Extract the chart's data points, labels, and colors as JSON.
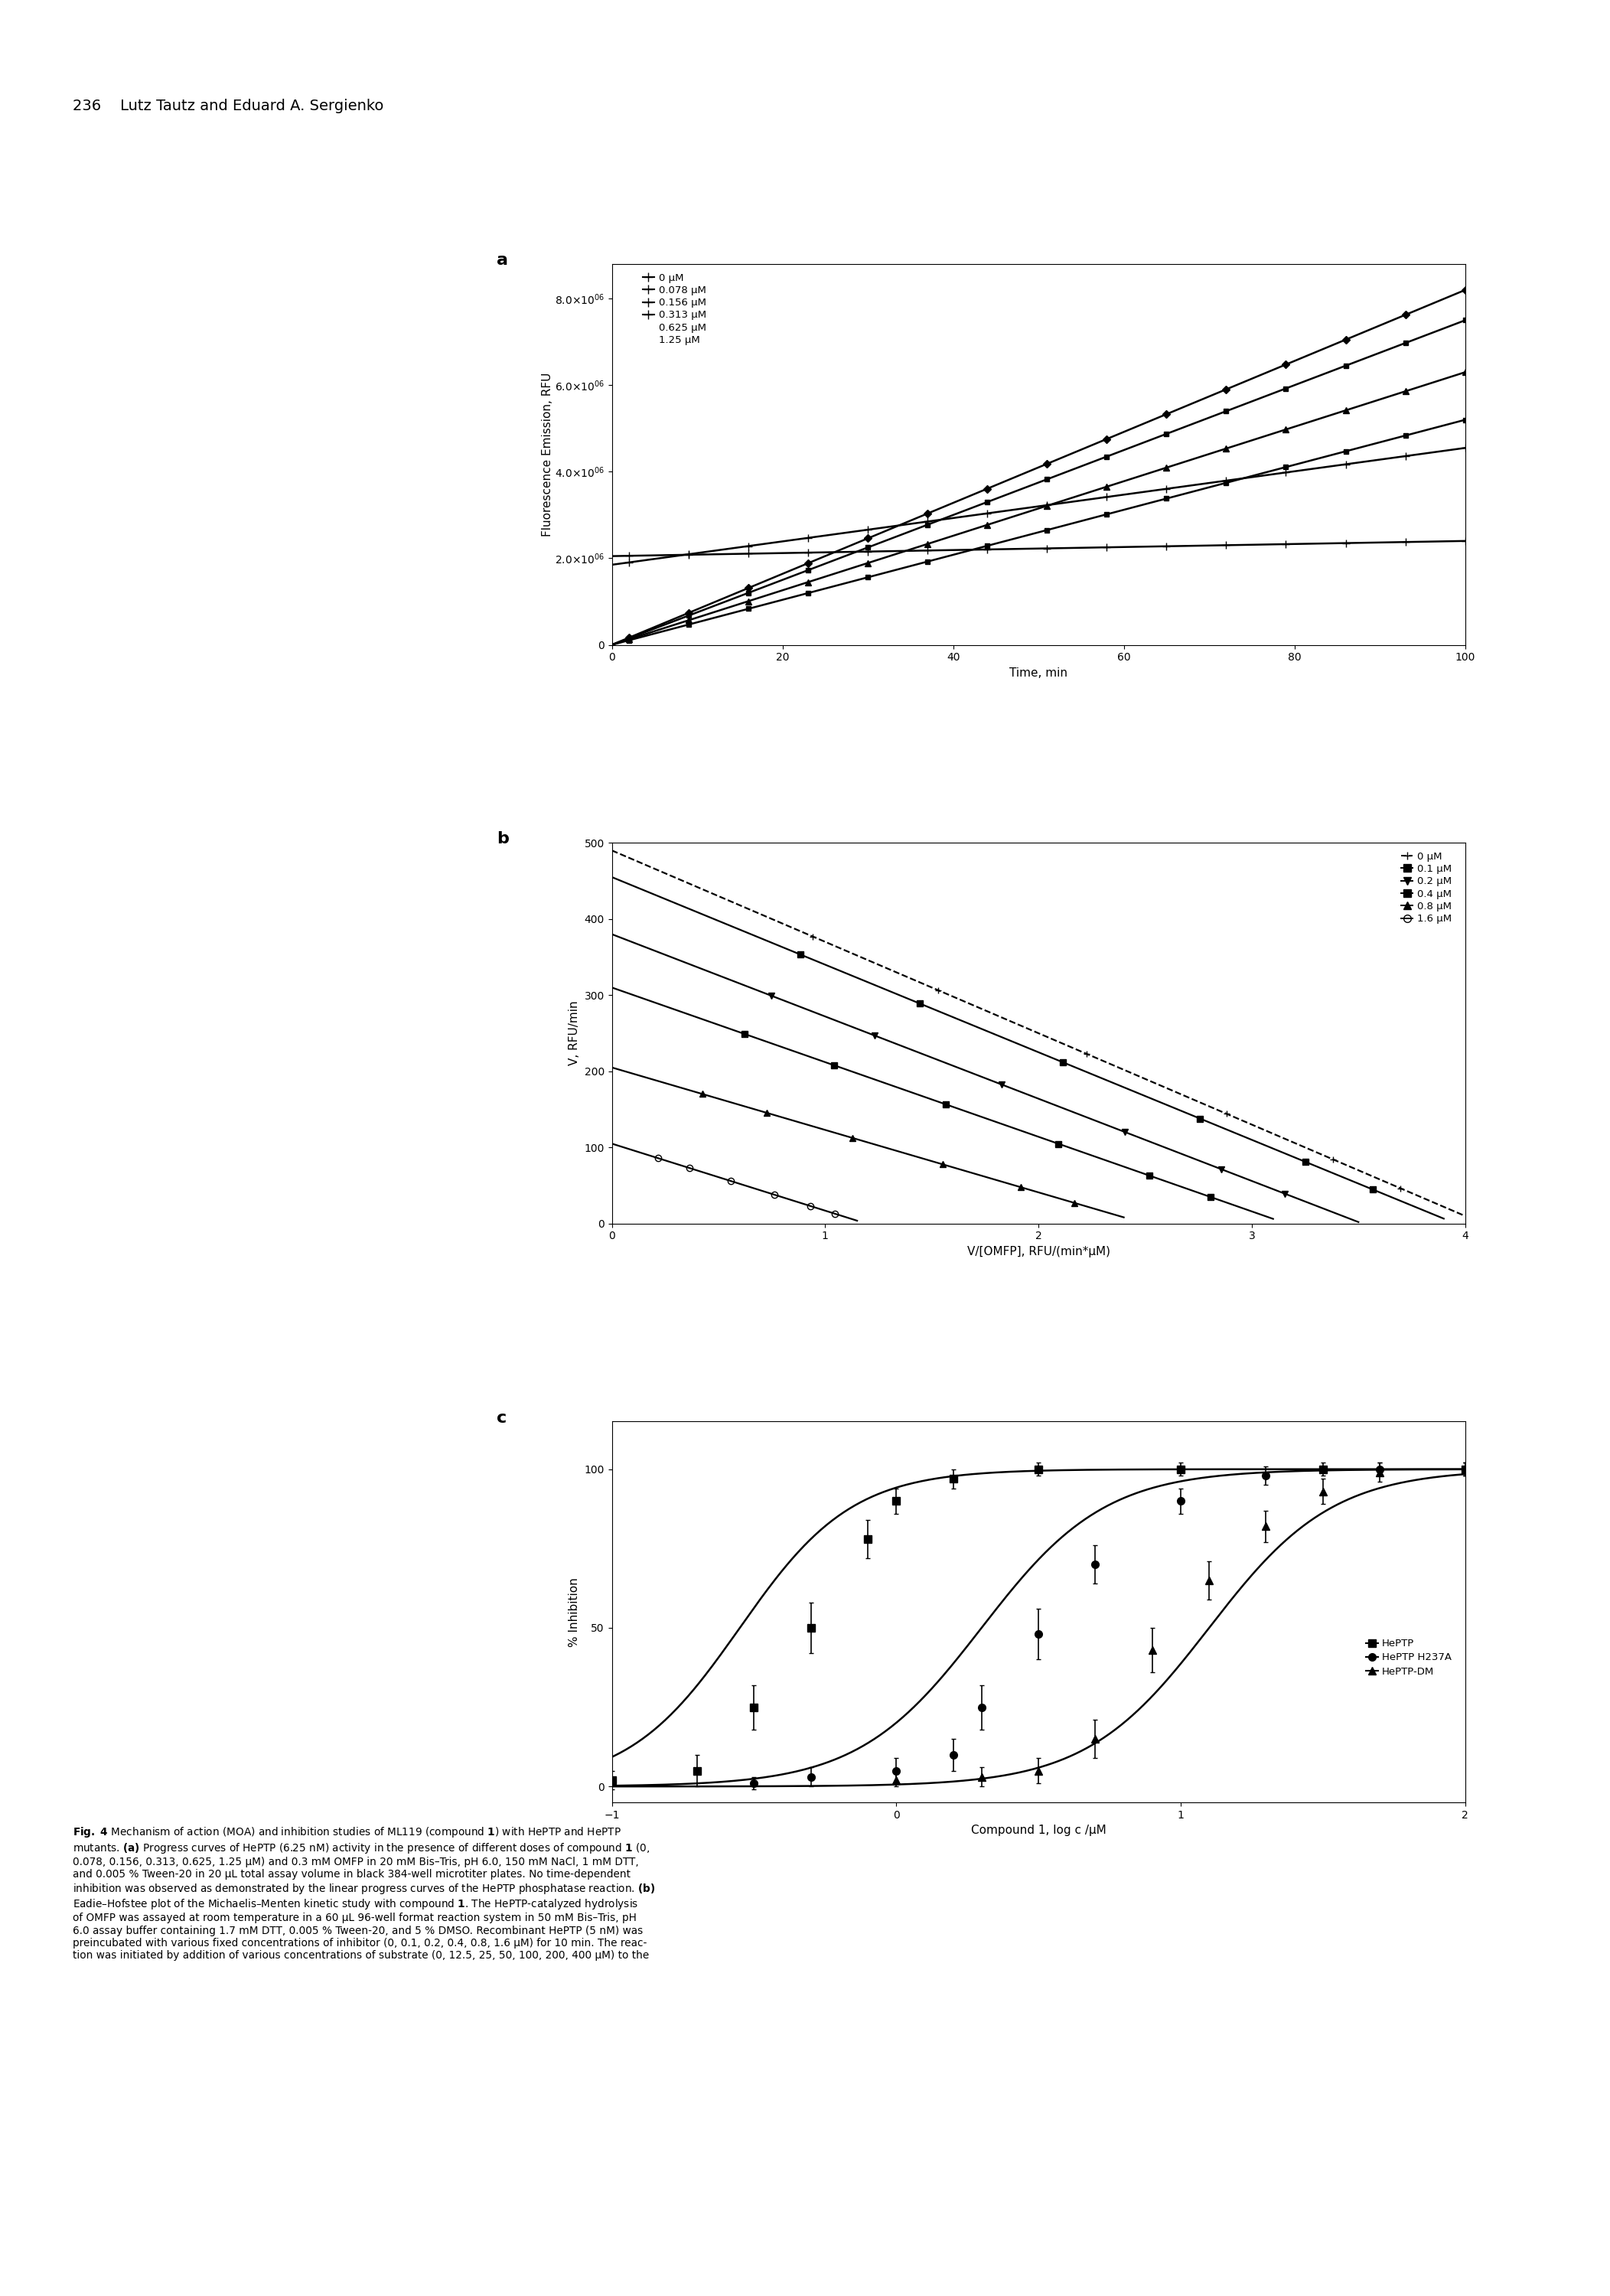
{
  "page_header": "236    Lutz Tautz and Eduard A. Sergienko",
  "panel_a": {
    "label": "a",
    "xlabel": "Time, min",
    "ylabel": "Fluorescence Emission, RFU",
    "xlim": [
      0,
      100
    ],
    "ylim": [
      0,
      8800000
    ],
    "xticks": [
      0,
      20,
      40,
      60,
      80,
      100
    ],
    "yticks": [
      0,
      2000000,
      4000000,
      6000000,
      8000000
    ],
    "ytick_labels": [
      "0",
      "2.0×10⁶⁶",
      "4.0×10⁶⁶",
      "6.0×10⁶⁶",
      "8.0×10⁶⁶"
    ],
    "legend_labels": [
      "0 μM",
      "0.078 μM",
      "0.156 μM",
      "0.313 μM",
      "0.625 μM",
      "1.25 μM"
    ],
    "line_slopes": [
      82000,
      75000,
      63000,
      52000,
      27000,
      3500
    ],
    "line_intercepts": [
      0,
      0,
      0,
      0,
      1850000,
      2050000
    ],
    "markers": [
      "D",
      "s",
      "^",
      "s",
      "+",
      "+"
    ],
    "marker_interval": 7
  },
  "panel_b": {
    "label": "b",
    "xlabel": "V/[OMFP], RFU/(min*μM)",
    "ylabel": "V, RFU/min",
    "xlim": [
      0,
      4
    ],
    "ylim": [
      0,
      500
    ],
    "xticks": [
      0,
      1,
      2,
      3,
      4
    ],
    "yticks": [
      0,
      100,
      200,
      300,
      400,
      500
    ],
    "legend_labels": [
      "0 μM",
      "0.1 μM",
      "0.2 μM",
      "0.4 μM",
      "0.8 μM",
      "1.6 μM"
    ],
    "eh_vmax": [
      490,
      455,
      380,
      310,
      205,
      105
    ],
    "eh_km": [
      120,
      115,
      108,
      98,
      82,
      88
    ],
    "eh_xmax": [
      4.0,
      3.9,
      3.5,
      3.1,
      2.4,
      1.15
    ],
    "markers": [
      "+",
      "s",
      "v",
      "s",
      "^",
      "o"
    ],
    "linestyles": [
      "--",
      "-",
      "-",
      "-",
      "-",
      "-"
    ],
    "substrate_uM": [
      12.5,
      25,
      50,
      100,
      200,
      400
    ]
  },
  "panel_c": {
    "label": "c",
    "xlabel": "Compound 1, log c /μM",
    "ylabel": "% Inhibition",
    "xlim": [
      -1,
      2
    ],
    "ylim": [
      -5,
      115
    ],
    "xticks": [
      -1,
      0,
      1,
      2
    ],
    "yticks": [
      0,
      50,
      100
    ],
    "legend_labels": [
      "HePTP",
      "HePTP H237A",
      "HePTP-DM"
    ],
    "ic50_log": [
      -0.55,
      0.3,
      1.1
    ],
    "hill": [
      2.2,
      2.0,
      2.0
    ],
    "markers": [
      "s",
      "o",
      "^"
    ],
    "mfc": [
      "black",
      "black",
      "black"
    ],
    "data_x": [
      [
        -1.0,
        -0.7,
        -0.5,
        -0.3,
        -0.1,
        0.0,
        0.2,
        0.5,
        1.0,
        1.5,
        2.0
      ],
      [
        -0.5,
        -0.3,
        0.0,
        0.2,
        0.3,
        0.5,
        0.7,
        1.0,
        1.3,
        1.7,
        2.0
      ],
      [
        0.0,
        0.3,
        0.5,
        0.7,
        0.9,
        1.1,
        1.3,
        1.5,
        1.7,
        2.0
      ]
    ],
    "data_y": [
      [
        2,
        5,
        25,
        50,
        78,
        90,
        97,
        100,
        100,
        100,
        100
      ],
      [
        1,
        3,
        5,
        10,
        25,
        48,
        70,
        90,
        98,
        100,
        100
      ],
      [
        2,
        3,
        5,
        15,
        43,
        65,
        82,
        93,
        99,
        100
      ]
    ],
    "data_yerr": [
      [
        3,
        5,
        7,
        8,
        6,
        4,
        3,
        2,
        2,
        2,
        2
      ],
      [
        2,
        3,
        4,
        5,
        7,
        8,
        6,
        4,
        3,
        2,
        2
      ],
      [
        2,
        3,
        4,
        6,
        7,
        6,
        5,
        4,
        3,
        2
      ]
    ]
  },
  "caption_bold_start": "Fig. 4",
  "caption_text": " Mechanism of action (MOA) and inhibition studies of ML119 (compound 1) with HePTP and HePTP\nmutants. (a) Progress curves of HePTP (6.25 nM) activity in the presence of different doses of compound 1 (0,\n0.078, 0.156, 0.313, 0.625, 1.25 μM) and 0.3 mM OMFP in 20 mM Bis–Tris, pH 6.0, 150 mM NaCl, 1 mM DTT,\nand 0.005 % Tween-20 in 20 μL total assay volume in black 384-well microtiter plates. No time-dependent\ninhibition was observed as demonstrated by the linear progress curves of the HePTP phosphatase reaction. (b)\nEadie–Hofstee plot of the Michaelis–Menten kinetic study with compound 1. The HePTP-catalyzed hydrolysis\nof OMFP was assayed at room temperature in a 60 μL 96-well format reaction system in 50 mM Bis–Tris, pH\n6.0 assay buffer containing 1.7 mM DTT, 0.005 % Tween-20, and 5 % DMSO. Recombinant HePTP (5 nM) was\npreincubated with various fixed concentrations of inhibitor (0, 0.1, 0.2, 0.4, 0.8, 1.6 μM) for 10 min. The reac-\ntion was initiated by addition of various concentrations of substrate (0, 12.5, 25, 50, 100, 200, 400 μM) to the"
}
